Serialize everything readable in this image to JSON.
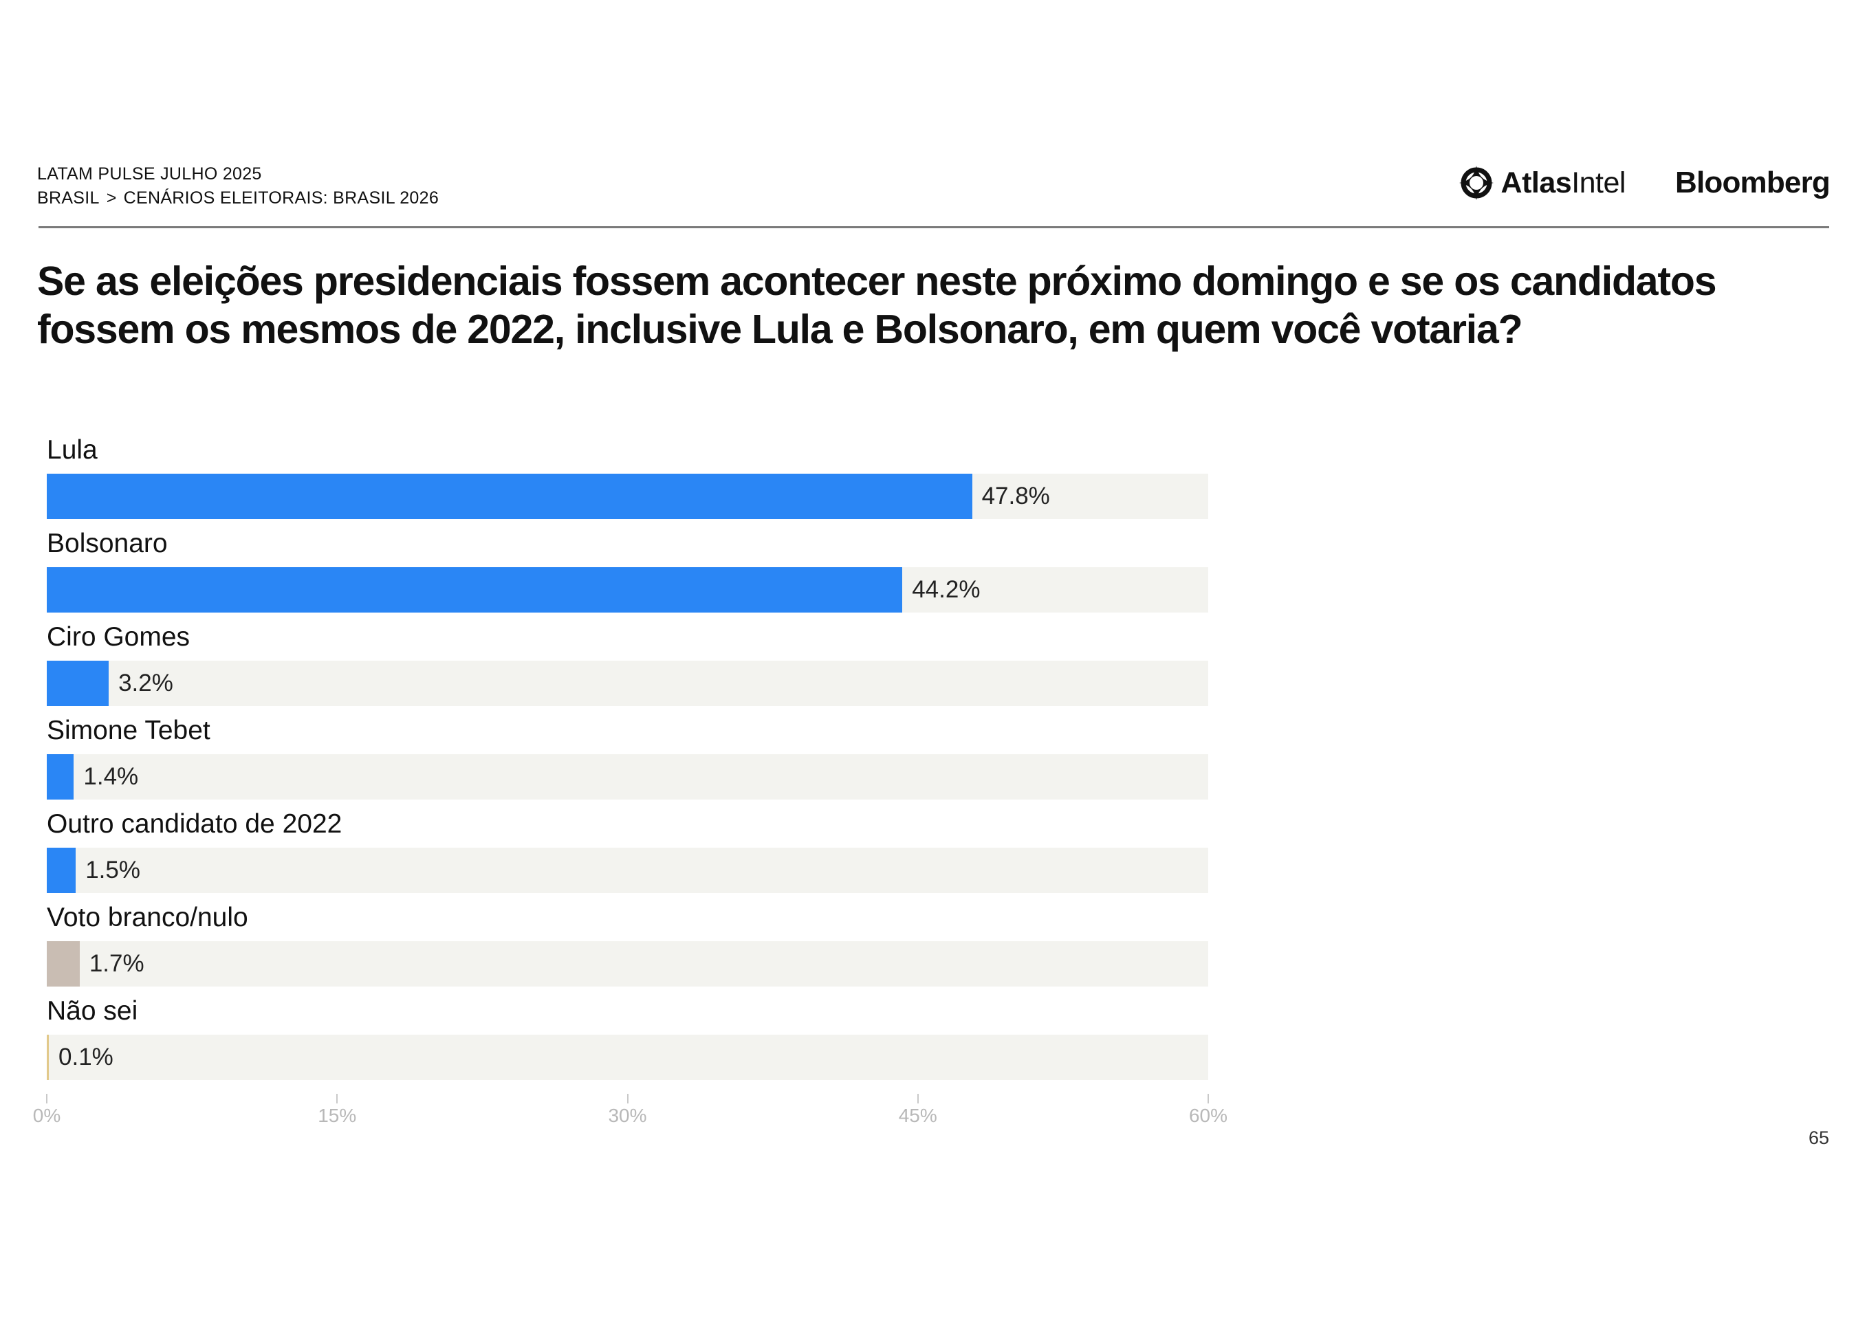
{
  "header": {
    "report_title": "LATAM PULSE JULHO 2025",
    "breadcrumb_root": "BRASIL",
    "breadcrumb_separator": ">",
    "breadcrumb_section": "CENÁRIOS ELEITORAIS: BRASIL 2026"
  },
  "logos": {
    "atlas_bold": "Atlas",
    "atlas_light": "Intel",
    "bloomberg": "Bloomberg"
  },
  "page_number": "65",
  "colors": {
    "candidate_bar": "#2a86f5",
    "blank_null_bar": "#c9bdb3",
    "unsure_bar": "#e2c98a",
    "track": "#f3f3ef"
  },
  "chart_data": {
    "type": "bar",
    "orientation": "horizontal",
    "title": "Se as eleições presidenciais fossem acontecer neste próximo domingo e se os candidatos fossem os mesmos de 2022, inclusive Lula e Bolsonaro, em quem você votaria?",
    "categories": [
      "Lula",
      "Bolsonaro",
      "Ciro Gomes",
      "Simone Tebet",
      "Outro candidato de 2022",
      "Voto branco/nulo",
      "Não sei"
    ],
    "values": [
      47.8,
      44.2,
      3.2,
      1.4,
      1.5,
      1.7,
      0.1
    ],
    "value_labels": [
      "47.8%",
      "44.2%",
      "3.2%",
      "1.4%",
      "1.5%",
      "1.7%",
      "0.1%"
    ],
    "bar_color_keys": [
      "candidate_bar",
      "candidate_bar",
      "candidate_bar",
      "candidate_bar",
      "candidate_bar",
      "blank_null_bar",
      "unsure_bar"
    ],
    "xlim": [
      0,
      60
    ],
    "xticks": [
      0,
      15,
      30,
      45,
      60
    ],
    "xtick_labels": [
      "0%",
      "15%",
      "30%",
      "45%",
      "60%"
    ],
    "xlabel": "",
    "ylabel": "",
    "grid": false
  }
}
